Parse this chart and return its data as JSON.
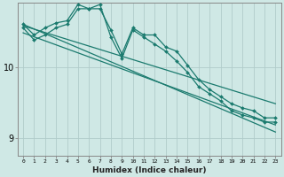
{
  "xlabel": "Humidex (Indice chaleur)",
  "x_ticks": [
    0,
    1,
    2,
    3,
    4,
    5,
    6,
    7,
    8,
    9,
    10,
    11,
    12,
    13,
    14,
    15,
    16,
    17,
    18,
    19,
    20,
    21,
    22,
    23
  ],
  "ylim": [
    8.75,
    10.9
  ],
  "yticks": [
    9,
    10
  ],
  "xlim": [
    -0.5,
    23.5
  ],
  "bg_color": "#cfe8e5",
  "grid_color": "#b0ccca",
  "line_color": "#1a7a6e",
  "series1_y": [
    10.6,
    10.45,
    10.55,
    10.62,
    10.65,
    10.88,
    10.82,
    10.82,
    10.52,
    10.18,
    10.55,
    10.45,
    10.45,
    10.28,
    10.22,
    10.02,
    9.82,
    9.68,
    9.58,
    9.48,
    9.42,
    9.38,
    9.28,
    9.28
  ],
  "series2_y": [
    10.55,
    10.38,
    10.45,
    10.55,
    10.6,
    10.82,
    10.82,
    10.88,
    10.42,
    10.12,
    10.52,
    10.42,
    10.32,
    10.22,
    10.08,
    9.92,
    9.72,
    9.62,
    9.52,
    9.38,
    9.32,
    9.28,
    9.22,
    9.22
  ],
  "trend1": [
    10.6,
    9.08
  ],
  "trend2": [
    10.48,
    9.18
  ],
  "trend3": [
    10.58,
    9.48
  ]
}
